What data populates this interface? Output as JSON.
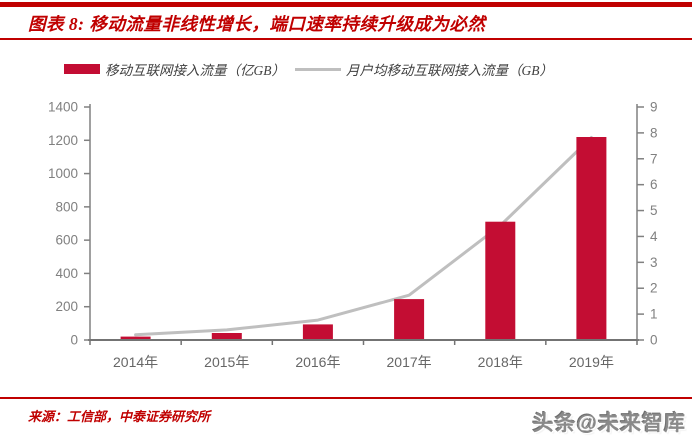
{
  "page": {
    "title": "图表 8: 移动流量非线性增长，端口速率持续升级成为必然",
    "source": "来源：工信部，中泰证券研究所",
    "watermark": "头条@未来智库"
  },
  "colors": {
    "accent_red": "#C00000",
    "bar_red": "#C30D33",
    "line_gray": "#BFBFBF",
    "axis_gray": "#808080",
    "axis_bottom_gray": "#737373",
    "tick_label_gray": "#808080",
    "x_label_gray": "#666666"
  },
  "legend": {
    "bar_label": "移动互联网接入流量（亿GB）",
    "line_label": "月户均移动互联网接入流量（GB）"
  },
  "chart_data": {
    "type": "bar",
    "subtype": "combo-bar-line",
    "title": "移动流量非线性增长",
    "categories": [
      "2014年",
      "2015年",
      "2016年",
      "2017年",
      "2018年",
      "2019年"
    ],
    "series": [
      {
        "name": "移动互联网接入流量（亿GB）",
        "type": "bar",
        "axis": "left",
        "color": "#C30D33",
        "values": [
          20.6,
          41.9,
          93.6,
          246,
          711,
          1220
        ]
      },
      {
        "name": "月户均移动互联网接入流量（GB）",
        "type": "line",
        "axis": "right",
        "color": "#BFBFBF",
        "values": [
          0.2,
          0.39,
          0.77,
          1.73,
          4.42,
          7.82
        ]
      }
    ],
    "left_axis": {
      "min": 0,
      "max": 1400,
      "step": 200
    },
    "right_axis": {
      "min": 0,
      "max": 9,
      "step": 1
    },
    "grid": false,
    "legend_position": "top",
    "xlabel": "",
    "ylabel_left": "亿GB",
    "ylabel_right": "GB"
  }
}
